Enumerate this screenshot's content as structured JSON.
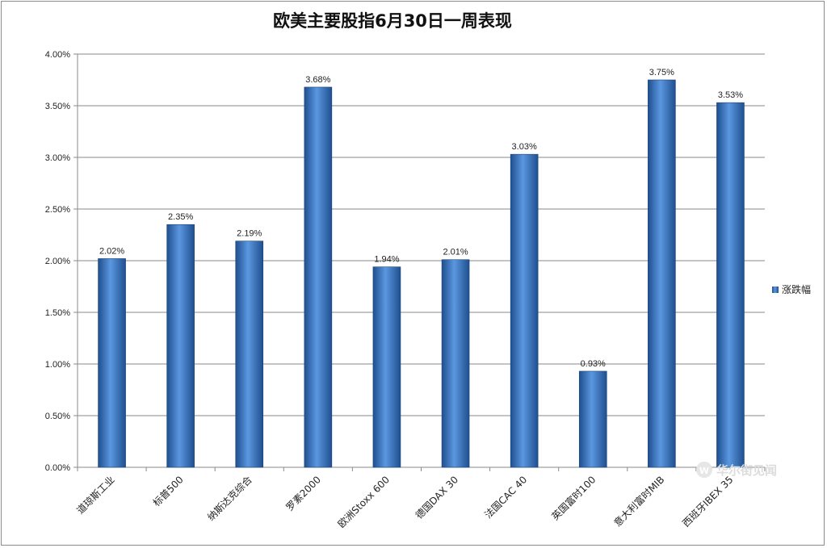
{
  "chart_data": {
    "type": "bar",
    "title": "欧美主要股指6月30日一周表现",
    "categories": [
      "道琼斯工业",
      "标普500",
      "纳斯达克综合",
      "罗素2000",
      "欧洲Stoxx 600",
      "德国DAX 30",
      "法国CAC 40",
      "英国富时100",
      "意大利富时MIB",
      "西班牙IBEX 35"
    ],
    "series": [
      {
        "name": "涨跌幅",
        "values": [
          2.02,
          2.35,
          2.19,
          3.68,
          1.94,
          2.01,
          3.03,
          0.93,
          3.75,
          3.53
        ],
        "labels": [
          "2.02%",
          "2.35%",
          "2.19%",
          "3.68%",
          "1.94%",
          "2.01%",
          "3.03%",
          "0.93%",
          "3.75%",
          "3.53%"
        ]
      }
    ],
    "y_ticks": [
      0,
      0.5,
      1,
      1.5,
      2,
      2.5,
      3,
      3.5,
      4
    ],
    "y_tick_labels": [
      "0.00%",
      "0.50%",
      "1.00%",
      "1.50%",
      "2.00%",
      "2.50%",
      "3.00%",
      "3.50%",
      "4.00%"
    ],
    "ylim": [
      0,
      4
    ],
    "xlabel": "",
    "ylabel": "",
    "grid": true,
    "legend_position": "right",
    "bar_color": "#3a78c8"
  },
  "watermark": {
    "text": "华尔街见闻"
  }
}
